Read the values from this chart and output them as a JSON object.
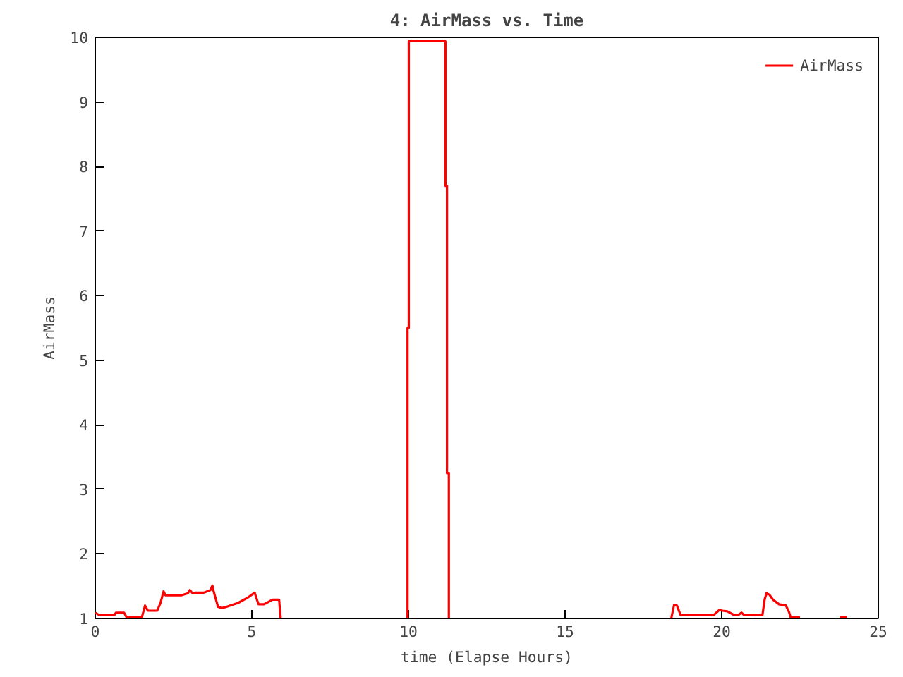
{
  "chart_data": {
    "type": "line",
    "title": "4: AirMass vs. Time",
    "xlabel": "time (Elapse Hours)",
    "ylabel": "AirMass",
    "x": [
      0.0,
      0.1,
      0.62,
      0.66,
      0.92,
      1.0,
      1.49,
      1.59,
      1.68,
      1.98,
      2.09,
      2.18,
      2.24,
      2.76,
      2.96,
      3.02,
      3.11,
      3.2,
      3.47,
      3.68,
      3.74,
      3.78,
      3.92,
      4.04,
      4.19,
      4.56,
      4.86,
      5.09,
      5.21,
      5.39,
      5.66,
      5.87,
      5.92,
      8.0,
      9.97,
      9.97,
      10.01,
      10.01,
      11.18,
      11.18,
      11.23,
      11.23,
      11.29,
      11.29,
      15.0,
      18.39,
      18.48,
      18.57,
      18.69,
      19.74,
      19.92,
      20.03,
      20.18,
      20.37,
      20.55,
      20.63,
      20.7,
      20.93,
      20.97,
      21.23,
      21.3,
      21.37,
      21.43,
      21.52,
      21.64,
      21.83,
      22.05,
      22.15,
      22.2,
      22.5,
      23.0,
      23.77,
      24.0
    ],
    "series": [
      {
        "name": "AirMass",
        "color": "#ff0000",
        "values": [
          1.09,
          1.06,
          1.06,
          1.09,
          1.09,
          1.02,
          1.02,
          1.2,
          1.12,
          1.12,
          1.25,
          1.42,
          1.36,
          1.36,
          1.39,
          1.44,
          1.39,
          1.4,
          1.4,
          1.44,
          1.51,
          1.42,
          1.18,
          1.16,
          1.18,
          1.24,
          1.32,
          1.4,
          1.22,
          1.22,
          1.29,
          1.29,
          1.0,
          null,
          1.0,
          5.5,
          5.5,
          9.94,
          9.94,
          7.7,
          7.7,
          3.25,
          3.25,
          1.0,
          null,
          1.0,
          1.21,
          1.2,
          1.05,
          1.05,
          1.13,
          1.12,
          1.11,
          1.06,
          1.06,
          1.09,
          1.06,
          1.06,
          1.05,
          1.05,
          1.05,
          1.29,
          1.39,
          1.37,
          1.29,
          1.22,
          1.2,
          1.1,
          1.02,
          1.02,
          null,
          1.02,
          1.02
        ]
      }
    ],
    "xlim": [
      0,
      25
    ],
    "ylim": [
      1,
      10
    ],
    "xticks": [
      0,
      5,
      10,
      15,
      20,
      25
    ],
    "yticks": [
      1,
      2,
      3,
      4,
      5,
      6,
      7,
      8,
      9,
      10
    ],
    "grid": false,
    "legend": "top right"
  }
}
